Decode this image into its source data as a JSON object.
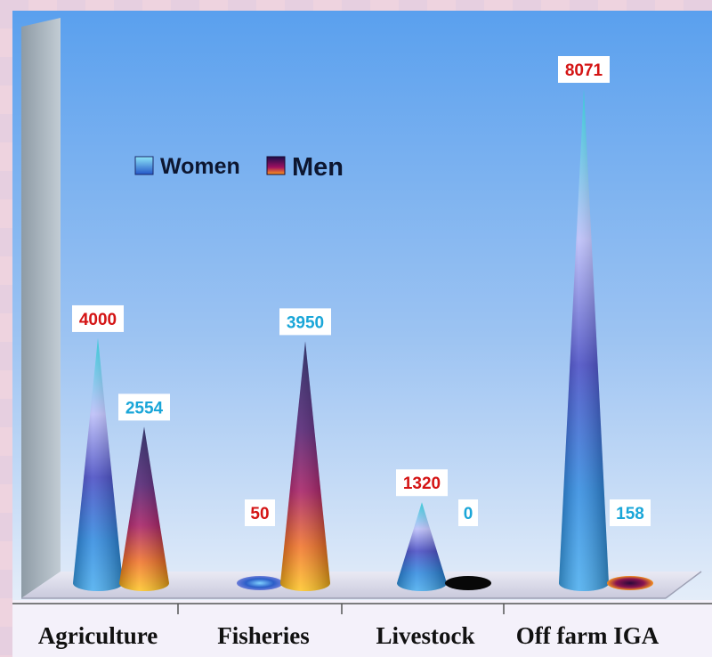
{
  "chart_data": {
    "type": "bar",
    "bar_shape": "cone",
    "title": "",
    "xlabel": "",
    "ylabel": "",
    "categories": [
      "Agriculture",
      "Fisheries",
      "Livestock",
      "Off farm IGA"
    ],
    "series": [
      {
        "name": "Women",
        "values": [
          4000,
          50,
          1320,
          8071
        ]
      },
      {
        "name": "Men",
        "values": [
          2554,
          3950,
          0,
          158
        ]
      }
    ],
    "data_labels": [
      "4000",
      "2554",
      "50",
      "3950",
      "1320",
      "0",
      "8071",
      "158"
    ],
    "data_label_colors": [
      "#d41414",
      "#1aa6d8",
      "#d41414",
      "#1aa6d8",
      "#d41414",
      "#1aa6d8",
      "#d41414",
      "#1aa6d8"
    ],
    "ylim": [
      0,
      8071
    ],
    "grid": false,
    "legend_position": "top-left",
    "colors": {
      "women": "#2f7fe0",
      "men": "#5a0c5e",
      "background_top": "#5aa0ee",
      "background_bottom": "#dde9f8"
    }
  }
}
